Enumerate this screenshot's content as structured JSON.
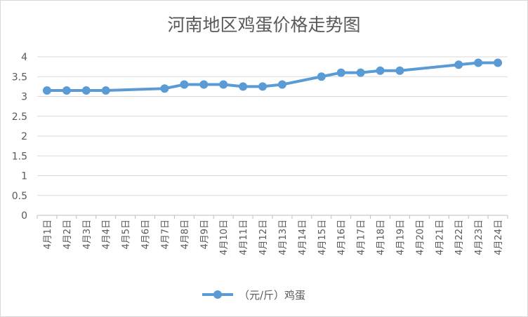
{
  "chart_data": {
    "type": "line",
    "title": "河南地区鸡蛋价格走势图",
    "categories": [
      "4月1日",
      "4月2日",
      "4月3日",
      "4月4日",
      "4月5日",
      "4月6日",
      "4月7日",
      "4月8日",
      "4月9日",
      "4月10日",
      "4月11日",
      "4月12日",
      "4月13日",
      "4月14日",
      "4月15日",
      "4月16日",
      "4月17日",
      "4月18日",
      "4月19日",
      "4月20日",
      "4月21日",
      "4月22日",
      "4月23日",
      "4月24日"
    ],
    "series": [
      {
        "name": "（元/斤）鸡蛋",
        "color": "#5b9bd5",
        "values": [
          3.15,
          3.15,
          3.15,
          3.15,
          null,
          null,
          3.2,
          3.3,
          3.3,
          3.3,
          3.25,
          3.25,
          3.3,
          null,
          3.5,
          3.6,
          3.6,
          3.65,
          3.65,
          null,
          null,
          3.8,
          3.85,
          3.85
        ]
      }
    ],
    "ylim": [
      0,
      4
    ],
    "yticks": [
      "0",
      "0.5",
      "1",
      "1.5",
      "2",
      "2.5",
      "3",
      "3.5",
      "4"
    ],
    "grid": true,
    "legend": "bottom"
  }
}
